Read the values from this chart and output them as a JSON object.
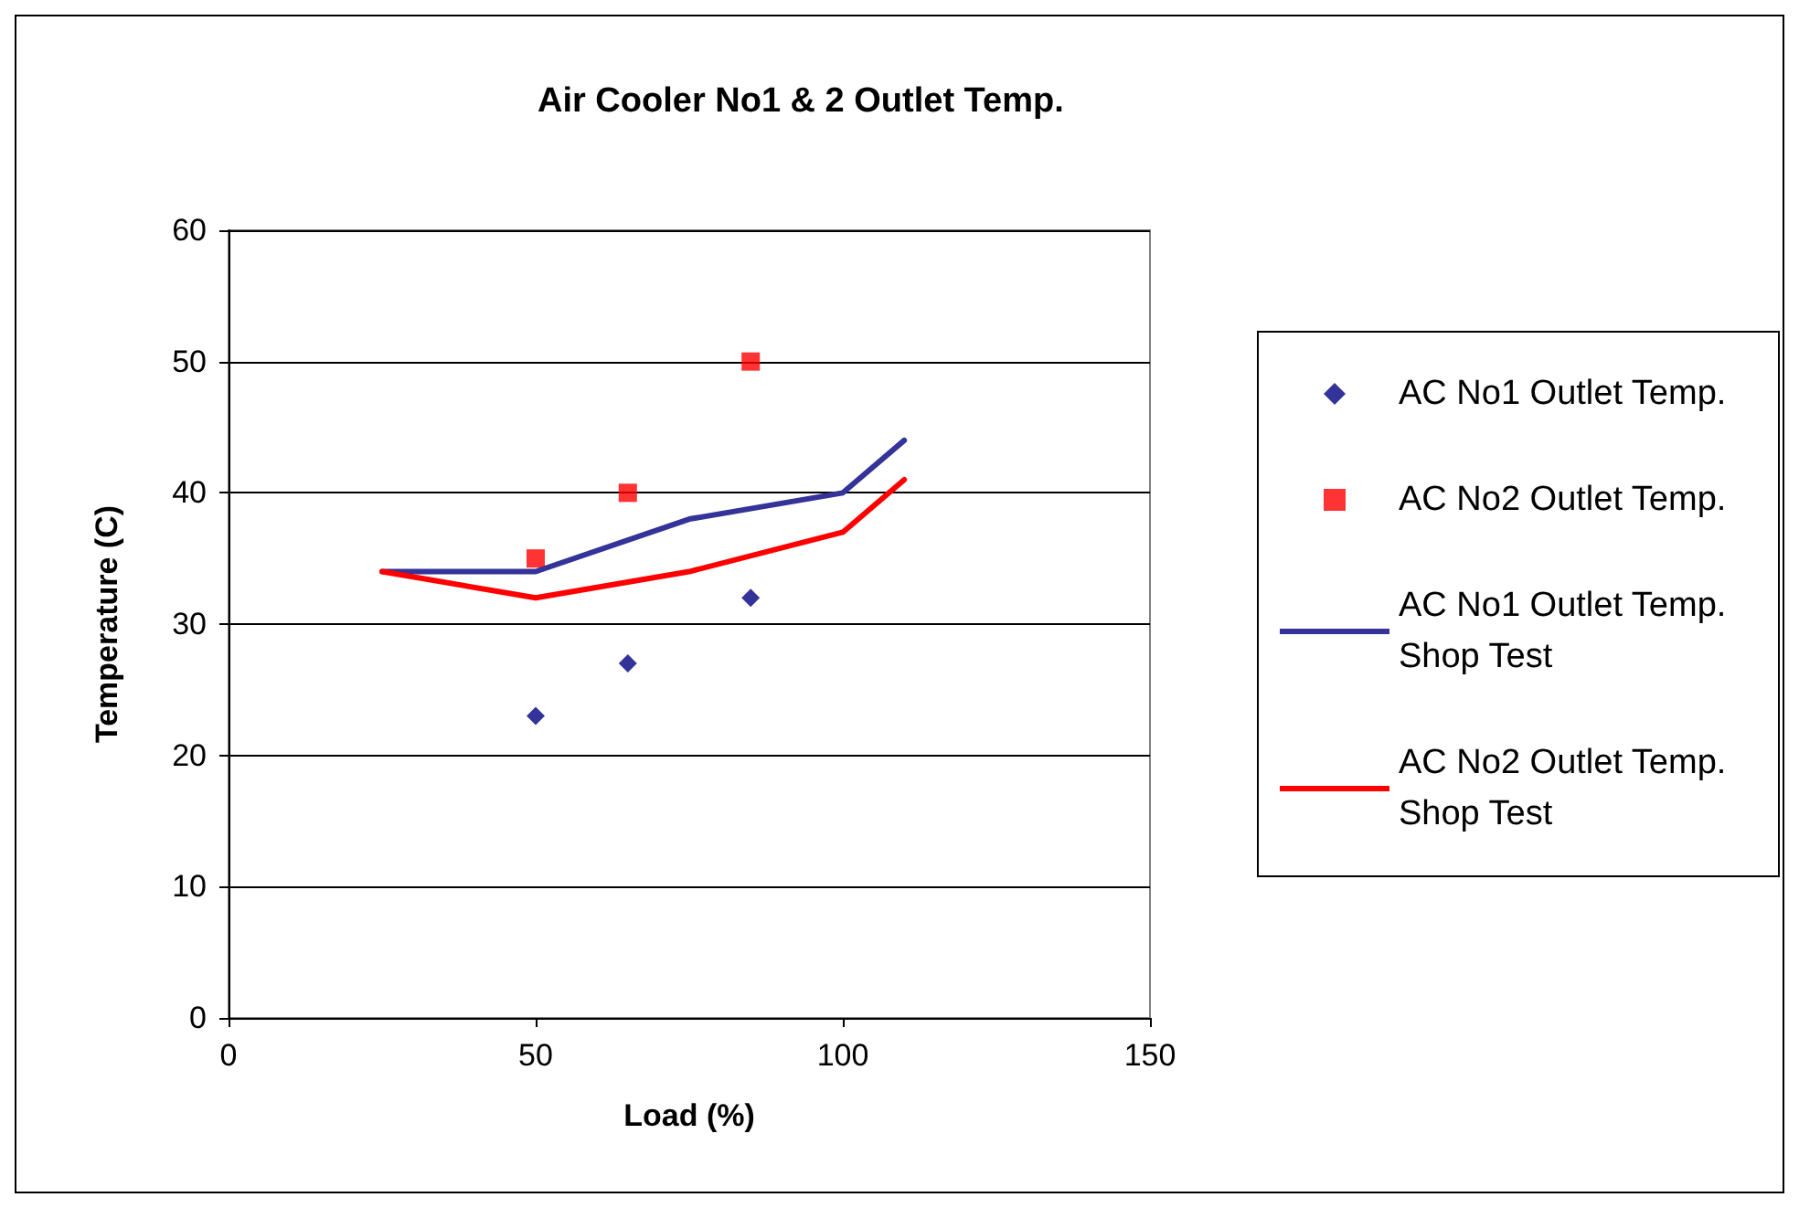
{
  "chart_data": {
    "type": "line",
    "title": "Air Cooler No1 & 2 Outlet Temp.",
    "xlabel": "Load (%)",
    "ylabel": "Temperature (C)",
    "xlim": [
      0,
      150
    ],
    "xticks": [
      0,
      50,
      100,
      150
    ],
    "ylim": [
      0,
      60
    ],
    "yticks": [
      0,
      10,
      20,
      30,
      40,
      50,
      60
    ],
    "grid": "y",
    "legend": "right",
    "series": [
      {
        "name": "AC No1 Outlet Temp.",
        "type": "scatter",
        "marker": "diamond",
        "color": "#000080",
        "x": [
          50,
          65,
          85
        ],
        "values": [
          23,
          27,
          32
        ]
      },
      {
        "name": "AC No2 Outlet Temp.",
        "type": "scatter",
        "marker": "square",
        "color": "#ff0000",
        "x": [
          50,
          65,
          85
        ],
        "values": [
          35,
          40,
          50
        ]
      },
      {
        "name": "AC No1 Outlet Temp. Shop Test",
        "marker": "none",
        "color": "#333399",
        "x": [
          25,
          50,
          75,
          100,
          110
        ],
        "values": [
          34,
          34,
          38,
          40,
          44
        ]
      },
      {
        "name": "AC No2 Outlet Temp. Shop Test",
        "marker": "none",
        "color": "#ff0000",
        "x": [
          25,
          50,
          75,
          100,
          110
        ],
        "values": [
          34,
          32,
          34,
          37,
          41
        ]
      }
    ]
  }
}
